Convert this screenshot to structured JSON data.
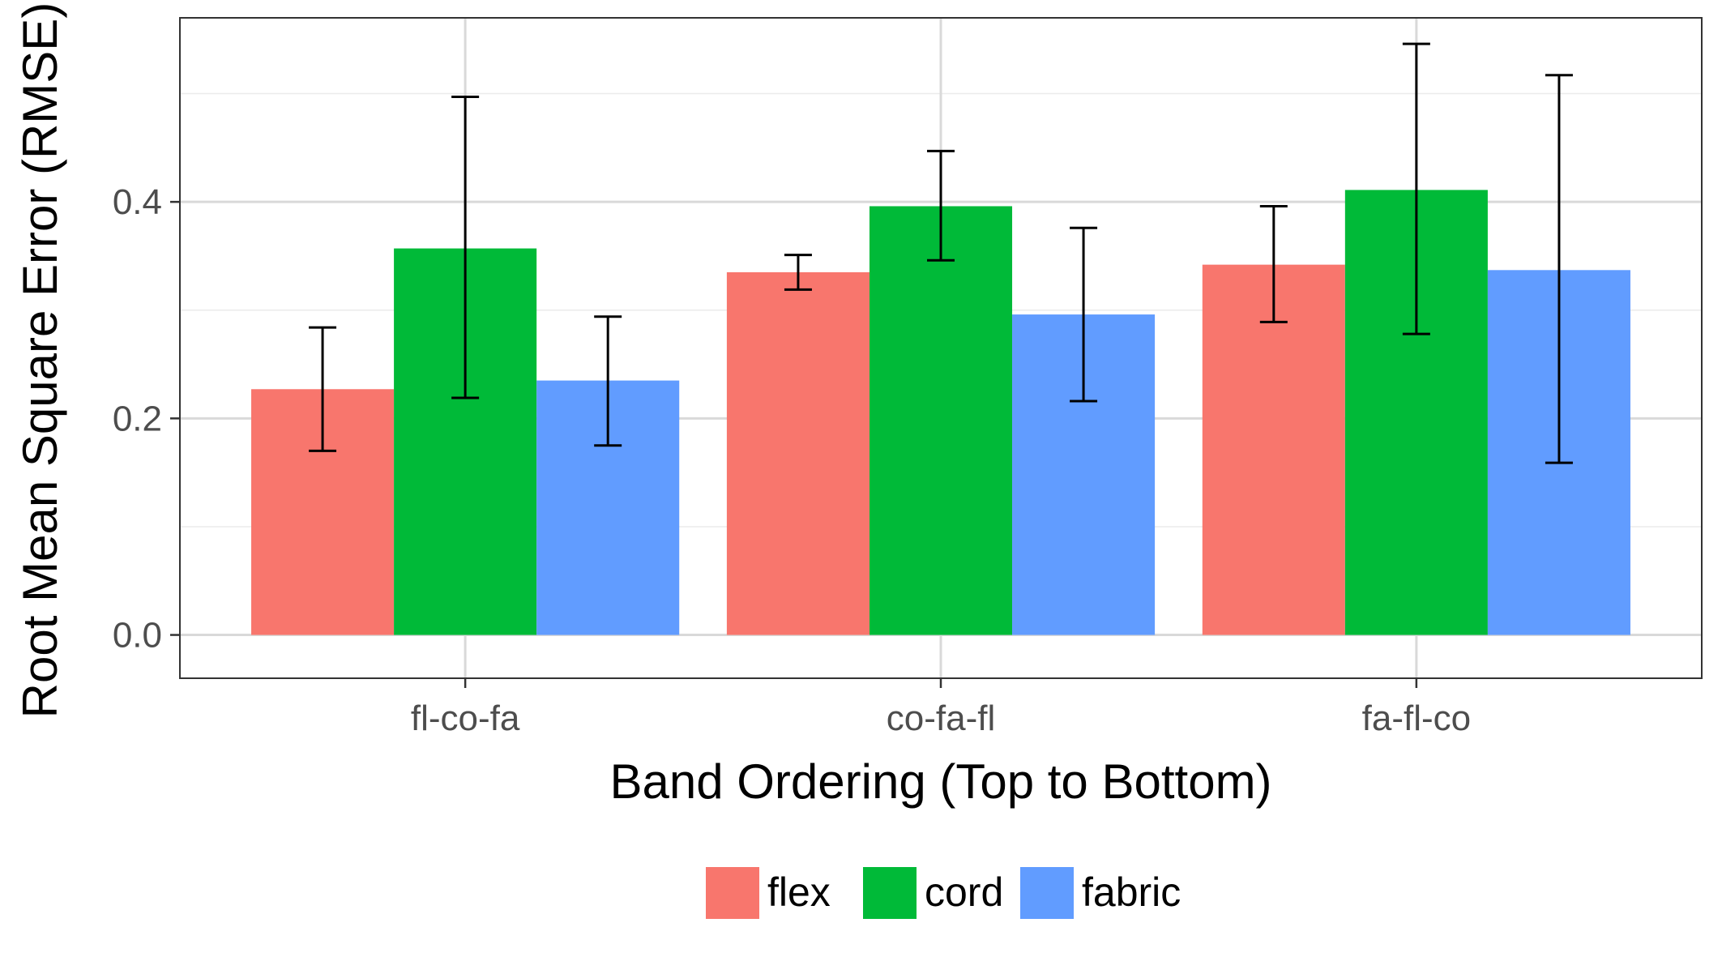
{
  "chart_data": {
    "type": "bar",
    "title": "",
    "xlabel": "Band Ordering (Top to Bottom)",
    "ylabel": "Root Mean Square Error (RMSE)",
    "ylim": [
      -0.04,
      0.57
    ],
    "yticks": [
      0.0,
      0.2,
      0.4
    ],
    "ytick_labels": [
      "0.0",
      "0.2",
      "0.4"
    ],
    "grid": true,
    "legend_position": "bottom",
    "categories": [
      "fl-co-fa",
      "co-fa-fl",
      "fa-fl-co"
    ],
    "series": [
      {
        "name": "flex",
        "color": "#F8766D",
        "values": [
          0.227,
          0.335,
          0.342
        ],
        "error_low": [
          0.17,
          0.319,
          0.289
        ],
        "error_high": [
          0.284,
          0.351,
          0.396
        ]
      },
      {
        "name": "cord",
        "color": "#00BA38",
        "values": [
          0.357,
          0.396,
          0.411
        ],
        "error_low": [
          0.219,
          0.346,
          0.278
        ],
        "error_high": [
          0.497,
          0.447,
          0.546
        ]
      },
      {
        "name": "fabric",
        "color": "#619CFF",
        "values": [
          0.235,
          0.296,
          0.337
        ],
        "error_low": [
          0.175,
          0.216,
          0.159
        ],
        "error_high": [
          0.294,
          0.376,
          0.517
        ]
      }
    ]
  }
}
